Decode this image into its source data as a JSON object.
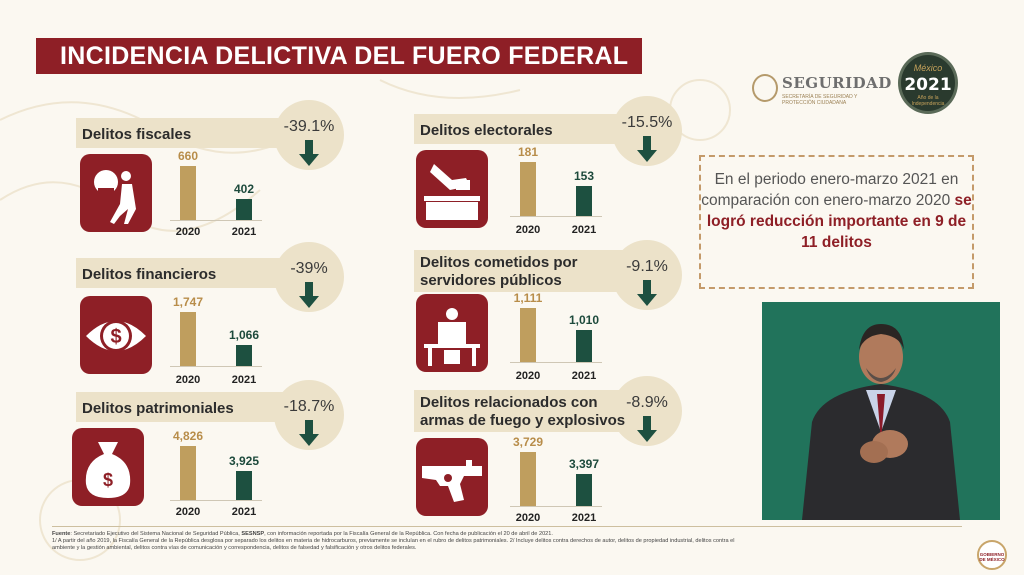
{
  "title": "INCIDENCIA DELICTIVA DEL FUERO FEDERAL",
  "logos": {
    "seguridad_name": "SEGURIDAD",
    "seguridad_sub": "SECRETARÍA DE SEGURIDAD Y PROTECCIÓN CIUDADANA",
    "mexico_label": "México",
    "year_label": "2021",
    "year_sub": "Año de la Independencia",
    "badge_label": "GOBIERNO DE MÉXICO"
  },
  "cards": [
    {
      "title": "Delitos fiscales",
      "pct": "-39.1%",
      "icon": "money-bag-thief-icon",
      "v2020": "660",
      "v2021": "402",
      "n2020": 660,
      "n2021": 402,
      "y1": "2020",
      "y2": "2021"
    },
    {
      "title": "Delitos financieros",
      "pct": "-39%",
      "icon": "dollar-eye-icon",
      "v2020": "1,747",
      "v2021": "1,066",
      "n2020": 1747,
      "n2021": 1066,
      "y1": "2020",
      "y2": "2021"
    },
    {
      "title": "Delitos patrimoniales",
      "pct": "-18.7%",
      "icon": "money-bag-icon",
      "v2020": "4,826",
      "v2021": "3,925",
      "n2020": 4826,
      "n2021": 3925,
      "y1": "2020",
      "y2": "2021"
    },
    {
      "title": "Delitos electorales",
      "pct": "-15.5%",
      "icon": "ballot-box-icon",
      "v2020": "181",
      "v2021": "153",
      "n2020": 181,
      "n2021": 153,
      "y1": "2020",
      "y2": "2021"
    },
    {
      "title": "Delitos cometidos por servidores públicos",
      "pct": "-9.1%",
      "icon": "official-desk-icon",
      "v2020": "1,111",
      "v2021": "1,010",
      "n2020": 1111,
      "n2021": 1010,
      "y1": "2020",
      "y2": "2021"
    },
    {
      "title": "Delitos relacionados con armas de fuego y explosivos",
      "pct": "-8.9%",
      "icon": "revolver-icon",
      "v2020": "3,729",
      "v2021": "3,397",
      "n2020": 3729,
      "n2021": 3397,
      "y1": "2020",
      "y2": "2021"
    }
  ],
  "info": {
    "text_a": "En el periodo enero-marzo 2021 en comparación con enero-marzo 2020 ",
    "text_b": "se logró reducción importante en 9  de 11 delitos"
  },
  "footer": {
    "label": "Fuente",
    "line1_a": ": Secretariado Ejecutivo del Sistema Nacional de Seguridad Pública, ",
    "line1_b": "SESNSP",
    "line1_c": ", con información reportada por la Fiscalía General de la República. Con fecha de publicación el 20 de abril de 2021.",
    "line2": "1/ A partir del año 2019, la Fiscalía General de la República desglosa por separado los delitos en materia de hidrocarburos, previamente se incluían en el rubro de delitos patrimoniales. 2/ Incluye delitos contra derechos de autor, delitos de propiedad industrial, delitos contra el",
    "line3": "ambiente y la gestión ambiental, delitos contra vías de comunicación y correspondencia, delitos de falsedad y falsificación y otros delitos federales."
  },
  "colors": {
    "maroon": "#8e1f26",
    "gold": "#bf9e5e",
    "green": "#1d5040",
    "beige": "#ece2c9"
  }
}
